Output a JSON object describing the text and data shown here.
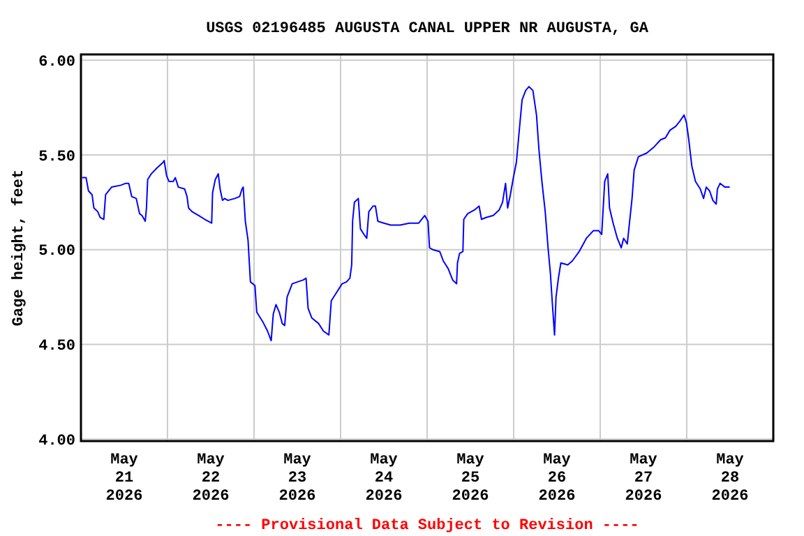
{
  "chart_data": {
    "type": "line",
    "title": "USGS 02196485 AUGUSTA CANAL UPPER NR AUGUSTA, GA",
    "ylabel": "Gage height, feet",
    "annotations": [
      "---- Provisional Data Subject to Revision ----"
    ],
    "xlim": [
      "2026-05-21T00:00",
      "2026-05-29T00:00"
    ],
    "xticks": [
      {
        "value": "2026-05-21T12:00",
        "label": "May 21 2026"
      },
      {
        "value": "2026-05-22T12:00",
        "label": "May 22 2026"
      },
      {
        "value": "2026-05-23T12:00",
        "label": "May 23 2026"
      },
      {
        "value": "2026-05-24T12:00",
        "label": "May 24 2026"
      },
      {
        "value": "2026-05-25T12:00",
        "label": "May 25 2026"
      },
      {
        "value": "2026-05-26T12:00",
        "label": "May 26 2026"
      },
      {
        "value": "2026-05-27T12:00",
        "label": "May 27 2026"
      },
      {
        "value": "2026-05-28T12:00",
        "label": "May 28 2026"
      },
      {
        "value": "2026-05-22T00:00",
        "label": null
      },
      {
        "value": "2026-05-23T00:00",
        "label": null
      },
      {
        "value": "2026-05-24T00:00",
        "label": null
      },
      {
        "value": "2026-05-25T00:00",
        "label": null
      },
      {
        "value": "2026-05-26T00:00",
        "label": null
      },
      {
        "value": "2026-05-27T00:00",
        "label": null
      },
      {
        "value": "2026-05-28T00:00",
        "label": null
      }
    ],
    "ylim": [
      3.99,
      6.03
    ],
    "yticks": [
      {
        "value": 4,
        "label": "4.00"
      },
      {
        "value": 4.5,
        "label": "4.50"
      },
      {
        "value": 5,
        "label": "5.00"
      },
      {
        "value": 5.5,
        "label": "5.50"
      },
      {
        "value": 6,
        "label": "6.00"
      }
    ],
    "grid": true,
    "marker": "none",
    "line_style": "solid",
    "series": [
      {
        "color": "#0000ff",
        "x": [
          "2026-05-21T00:20",
          "2026-05-21T01:25",
          "2026-05-21T02:05",
          "2026-05-21T03:05",
          "2026-05-21T03:35",
          "2026-05-21T04:40",
          "2026-05-21T05:20",
          "2026-05-21T06:20",
          "2026-05-21T06:50",
          "2026-05-21T08:30",
          "2026-05-21T11:05",
          "2026-05-21T12:25",
          "2026-05-21T13:15",
          "2026-05-21T14:05",
          "2026-05-21T15:20",
          "2026-05-21T16:15",
          "2026-05-21T16:55",
          "2026-05-21T17:50",
          "2026-05-21T18:10",
          "2026-05-21T18:30",
          "2026-05-21T19:30",
          "2026-05-21T21:00",
          "2026-05-21T22:45",
          "2026-05-21T23:05",
          "2026-05-21T23:45",
          "2026-05-22T00:25",
          "2026-05-22T01:35",
          "2026-05-22T02:10",
          "2026-05-22T03:00",
          "2026-05-22T04:45",
          "2026-05-22T05:25",
          "2026-05-22T05:50",
          "2026-05-22T06:50",
          "2026-05-22T08:40",
          "2026-05-22T10:20",
          "2026-05-22T12:15",
          "2026-05-22T12:30",
          "2026-05-22T13:15",
          "2026-05-22T14:05",
          "2026-05-22T14:35",
          "2026-05-22T15:15",
          "2026-05-22T15:50",
          "2026-05-22T16:45",
          "2026-05-22T18:40",
          "2026-05-22T20:00",
          "2026-05-22T20:40",
          "2026-05-22T21:00",
          "2026-05-22T21:35",
          "2026-05-22T22:20",
          "2026-05-22T23:00",
          "2026-05-23T00:15",
          "2026-05-23T00:45",
          "2026-05-23T02:25",
          "2026-05-23T03:45",
          "2026-05-23T04:45",
          "2026-05-23T05:20",
          "2026-05-23T06:05",
          "2026-05-23T07:00",
          "2026-05-23T07:50",
          "2026-05-23T08:30",
          "2026-05-23T09:10",
          "2026-05-23T10:35",
          "2026-05-23T12:05",
          "2026-05-23T13:40",
          "2026-05-23T14:25",
          "2026-05-23T15:00",
          "2026-05-23T16:00",
          "2026-05-23T17:55",
          "2026-05-23T19:15",
          "2026-05-23T20:45",
          "2026-05-23T21:25",
          "2026-05-23T23:05",
          "2026-05-24T00:25",
          "2026-05-24T01:40",
          "2026-05-24T02:35",
          "2026-05-24T03:05",
          "2026-05-24T03:20",
          "2026-05-24T03:50",
          "2026-05-24T04:55",
          "2026-05-24T05:30",
          "2026-05-24T06:30",
          "2026-05-24T07:15",
          "2026-05-24T07:50",
          "2026-05-24T09:00",
          "2026-05-24T09:40",
          "2026-05-24T10:20",
          "2026-05-24T12:00",
          "2026-05-24T13:55",
          "2026-05-24T16:30",
          "2026-05-24T19:05",
          "2026-05-24T21:40",
          "2026-05-24T23:20",
          "2026-05-25T00:15",
          "2026-05-25T00:40",
          "2026-05-25T01:35",
          "2026-05-25T03:30",
          "2026-05-25T04:30",
          "2026-05-25T05:50",
          "2026-05-25T07:05",
          "2026-05-25T08:10",
          "2026-05-25T08:25",
          "2026-05-25T09:00",
          "2026-05-25T09:55",
          "2026-05-25T10:10",
          "2026-05-25T11:15",
          "2026-05-25T13:10",
          "2026-05-25T14:25",
          "2026-05-25T15:05",
          "2026-05-25T16:25",
          "2026-05-25T18:20",
          "2026-05-25T20:00",
          "2026-05-25T20:55",
          "2026-05-25T21:45",
          "2026-05-25T22:20",
          "2026-05-25T23:05",
          "2026-05-25T23:55",
          "2026-05-26T00:45",
          "2026-05-26T01:25",
          "2026-05-26T02:20",
          "2026-05-26T03:20",
          "2026-05-26T04:15",
          "2026-05-26T05:20",
          "2026-05-26T06:20",
          "2026-05-26T07:00",
          "2026-05-26T07:50",
          "2026-05-26T08:45",
          "2026-05-26T09:35",
          "2026-05-26T10:10",
          "2026-05-26T10:45",
          "2026-05-26T11:20",
          "2026-05-26T11:45",
          "2026-05-26T12:25",
          "2026-05-26T13:05",
          "2026-05-26T15:00",
          "2026-05-26T16:15",
          "2026-05-26T18:10",
          "2026-05-26T20:10",
          "2026-05-26T22:05",
          "2026-05-26T23:35",
          "2026-05-27T00:25",
          "2026-05-27T01:15",
          "2026-05-27T02:05",
          "2026-05-27T02:35",
          "2026-05-27T03:35",
          "2026-05-27T04:45",
          "2026-05-27T05:50",
          "2026-05-27T06:30",
          "2026-05-27T07:30",
          "2026-05-27T08:00",
          "2026-05-27T08:50",
          "2026-05-27T09:25",
          "2026-05-27T10:35",
          "2026-05-27T12:55",
          "2026-05-27T14:50",
          "2026-05-27T16:45",
          "2026-05-27T18:05",
          "2026-05-27T19:20",
          "2026-05-27T20:55",
          "2026-05-27T22:10",
          "2026-05-27T23:15",
          "2026-05-27T23:55",
          "2026-05-28T00:30",
          "2026-05-28T01:25",
          "2026-05-28T02:25",
          "2026-05-28T03:45",
          "2026-05-28T04:40",
          "2026-05-28T05:25",
          "2026-05-28T06:20",
          "2026-05-28T07:15",
          "2026-05-28T08:10",
          "2026-05-28T08:30",
          "2026-05-28T09:15",
          "2026-05-28T10:35",
          "2026-05-28T11:55"
        ],
        "values": [
          5.38,
          5.38,
          5.31,
          5.29,
          5.22,
          5.2,
          5.17,
          5.16,
          5.29,
          5.33,
          5.34,
          5.35,
          5.35,
          5.28,
          5.27,
          5.19,
          5.18,
          5.15,
          5.22,
          5.37,
          5.4,
          5.43,
          5.46,
          5.47,
          5.39,
          5.36,
          5.36,
          5.38,
          5.33,
          5.32,
          5.28,
          5.22,
          5.2,
          5.18,
          5.16,
          5.14,
          5.3,
          5.37,
          5.4,
          5.32,
          5.26,
          5.27,
          5.26,
          5.27,
          5.28,
          5.32,
          5.33,
          5.15,
          5.05,
          4.83,
          4.81,
          4.67,
          4.62,
          4.57,
          4.52,
          4.66,
          4.71,
          4.67,
          4.61,
          4.6,
          4.75,
          4.82,
          4.83,
          4.84,
          4.85,
          4.69,
          4.64,
          4.61,
          4.57,
          4.55,
          4.73,
          4.78,
          4.82,
          4.83,
          4.85,
          4.92,
          5.15,
          5.25,
          5.27,
          5.11,
          5.08,
          5.06,
          5.2,
          5.23,
          5.23,
          5.15,
          5.14,
          5.13,
          5.13,
          5.14,
          5.14,
          5.18,
          5.15,
          5.01,
          5.0,
          4.99,
          4.94,
          4.9,
          4.84,
          4.82,
          4.93,
          4.98,
          4.99,
          5.16,
          5.19,
          5.21,
          5.23,
          5.16,
          5.17,
          5.18,
          5.21,
          5.25,
          5.35,
          5.22,
          5.29,
          5.38,
          5.46,
          5.6,
          5.79,
          5.84,
          5.86,
          5.84,
          5.71,
          5.53,
          5.36,
          5.2,
          5.0,
          4.88,
          4.71,
          4.55,
          4.75,
          4.85,
          4.93,
          4.92,
          4.94,
          4.99,
          5.06,
          5.1,
          5.1,
          5.08,
          5.36,
          5.4,
          5.22,
          5.14,
          5.06,
          5.01,
          5.06,
          5.03,
          5.12,
          5.27,
          5.42,
          5.49,
          5.51,
          5.54,
          5.58,
          5.59,
          5.63,
          5.65,
          5.68,
          5.71,
          5.67,
          5.59,
          5.44,
          5.36,
          5.32,
          5.27,
          5.33,
          5.31,
          5.26,
          5.24,
          5.32,
          5.35,
          5.33,
          5.33
        ]
      }
    ]
  }
}
